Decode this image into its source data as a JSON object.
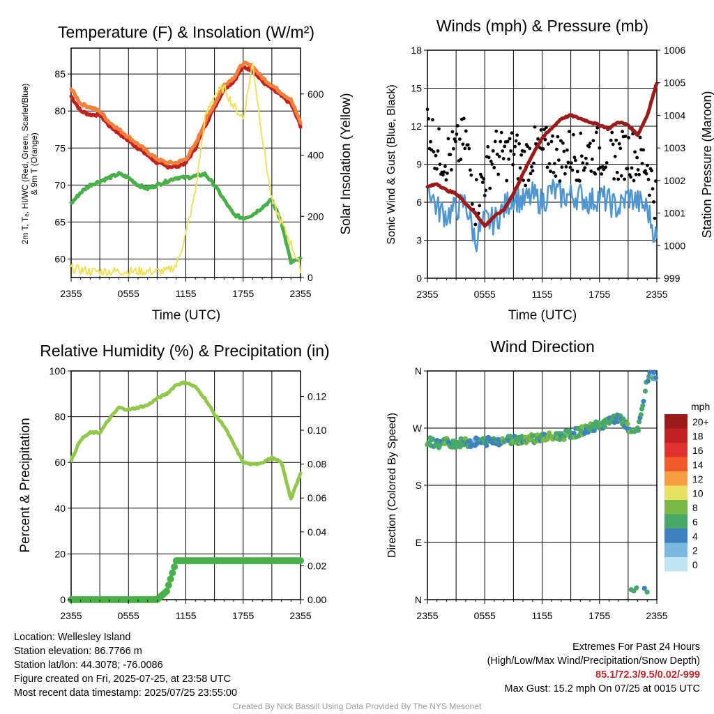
{
  "charts": {
    "temp": {
      "title": "Temperature (F) & Insolation (W/m²)",
      "ylabel_left_1": "2m T, Tₑ, HI/WC (Red, Green, Scarlet/Blue)",
      "ylabel_left_2": "& 9m T (Orange)",
      "ylabel_right": "Solar Insolation (Yellow)",
      "xlabel": "Time (UTC)"
    },
    "winds": {
      "title": "Winds (mph) & Pressure (mb)",
      "ylabel_left": "Sonic Wind & Gust (Blue, Black)",
      "ylabel_right": "Station Pressure (Maroon)",
      "xlabel": "Time (UTC)"
    },
    "rh": {
      "title": "Relative Humidity (%) & Precipitation (in)",
      "ylabel_left": "Percent & Precipitation"
    },
    "wdir": {
      "title": "Wind Direction",
      "ylabel_left": "Direction (Colored By Speed)",
      "legend_unit": "mph",
      "legend_labels": [
        "20+",
        "18",
        "16",
        "14",
        "12",
        "10",
        "8",
        "6",
        "4",
        "2",
        "0"
      ]
    }
  },
  "chart_data": [
    {
      "type": "line",
      "panel": "temp",
      "x_ticks": [
        "2355",
        "0555",
        "1155",
        "1755",
        "2355"
      ],
      "ylim": [
        57.5,
        88.5
      ],
      "y_ticks": [
        60,
        65,
        70,
        75,
        80,
        85
      ],
      "y2lim": [
        0,
        750
      ],
      "y2_ticks": [
        0,
        200,
        400,
        600
      ],
      "x_hours": [
        0,
        1,
        2,
        3,
        4,
        5,
        6,
        7,
        8,
        9,
        10,
        11,
        12,
        13,
        14,
        15,
        16,
        17,
        18,
        19,
        20,
        21,
        22,
        23,
        24
      ],
      "series": [
        {
          "color": "#c02020",
          "role": "2m temperature",
          "values": [
            82,
            80,
            79.5,
            79.5,
            78,
            77,
            76,
            75,
            74,
            73,
            72.5,
            72.5,
            73,
            75,
            78,
            80.5,
            83,
            84,
            86,
            85.5,
            84,
            83,
            82,
            81,
            78
          ]
        },
        {
          "color": "#f0803a",
          "role": "9m temperature",
          "values": [
            83,
            81,
            80.5,
            80,
            78.5,
            77.5,
            76.5,
            75.5,
            74.5,
            73.5,
            73,
            73,
            73.5,
            75.5,
            78.5,
            81,
            83.5,
            84.5,
            86.5,
            86,
            84.5,
            83.5,
            82.5,
            81.5,
            78.5
          ]
        },
        {
          "color": "#48b048",
          "role": "dewpoint",
          "values": [
            67.5,
            69,
            70,
            70.5,
            71,
            71.5,
            71,
            70,
            69.5,
            70,
            70.5,
            71,
            71,
            71.2,
            71.5,
            70,
            68,
            66,
            65.5,
            66,
            67,
            68,
            65,
            59.5,
            60
          ]
        },
        {
          "color": "#f0e060",
          "role": "insolation",
          "axis": "right",
          "values": [
            30,
            25,
            20,
            20,
            20,
            20,
            20,
            20,
            20,
            20,
            20,
            40,
            140,
            280,
            520,
            600,
            620,
            560,
            520,
            700,
            460,
            250,
            180,
            110,
            30
          ]
        }
      ]
    },
    {
      "type": "line",
      "panel": "winds",
      "x_ticks": [
        "2355",
        "0555",
        "1155",
        "1755",
        "2355"
      ],
      "ylim": [
        0,
        18
      ],
      "y_ticks": [
        0,
        3,
        6,
        9,
        12,
        15,
        18
      ],
      "y2lim": [
        999,
        1006
      ],
      "y2_ticks": [
        999,
        1000,
        1001,
        1002,
        1003,
        1004,
        1005,
        1006
      ],
      "x_hours": [
        0,
        1,
        2,
        3,
        4,
        5,
        6,
        7,
        8,
        9,
        10,
        11,
        12,
        13,
        14,
        15,
        16,
        17,
        18,
        19,
        20,
        21,
        22,
        23,
        24
      ],
      "series": [
        {
          "color": "#4f96d0",
          "role": "sonic wind",
          "values": [
            7.5,
            5.5,
            5,
            5.5,
            6,
            3,
            4.5,
            4.5,
            5.5,
            6.5,
            6,
            6.5,
            6,
            7,
            6.5,
            6.5,
            6.5,
            6,
            6.5,
            6,
            5.5,
            6.5,
            6,
            5.5,
            3
          ]
        },
        {
          "color": "#000000",
          "role": "gust",
          "values": [
            12.5,
            10,
            9.5,
            10,
            11,
            6,
            8,
            10,
            9.5,
            10,
            9,
            10,
            10,
            10,
            9.5,
            10,
            9.5,
            10,
            10,
            10,
            9.5,
            10,
            9.5,
            9,
            6
          ]
        },
        {
          "color": "#9b1a1a",
          "role": "station pressure",
          "axis": "right",
          "values": [
            1001.8,
            1001.9,
            1001.7,
            1001.6,
            1001.3,
            1001,
            1000.6,
            1000.9,
            1001.1,
            1001.6,
            1002.2,
            1002.8,
            1003.3,
            1003.6,
            1003.9,
            1004,
            1003.9,
            1003.8,
            1003.7,
            1003.6,
            1003.8,
            1003.7,
            1003.4,
            1004,
            1005
          ]
        }
      ]
    },
    {
      "type": "line",
      "panel": "rh",
      "x_ticks": [
        "2355",
        "0555",
        "1155",
        "1755",
        "2355"
      ],
      "ylim": [
        0,
        100
      ],
      "y_ticks": [
        0,
        20,
        40,
        60,
        80,
        100
      ],
      "y2lim": [
        0,
        0.135
      ],
      "y2_ticks": [
        "0.00",
        "0.02",
        "0.04",
        "0.06",
        "0.08",
        "0.10",
        "0.12"
      ],
      "x_hours": [
        0,
        1,
        2,
        3,
        4,
        5,
        6,
        7,
        8,
        9,
        10,
        11,
        12,
        13,
        14,
        15,
        16,
        17,
        18,
        19,
        20,
        21,
        22,
        23,
        24
      ],
      "series": [
        {
          "color": "#90c84a",
          "role": "relative humidity",
          "values": [
            61,
            70,
            73,
            73,
            79,
            84,
            83,
            84,
            85,
            88,
            90,
            94,
            95,
            93,
            88,
            81,
            76,
            68,
            60,
            59,
            60,
            62,
            60,
            44,
            55
          ]
        },
        {
          "color": "#48b048",
          "role": "precipitation",
          "axis": "right",
          "values": [
            0,
            0,
            0,
            0,
            0,
            0,
            0,
            0,
            0,
            0,
            0.005,
            0.023,
            0.023,
            0.023,
            0.023,
            0.023,
            0.023,
            0.023,
            0.023,
            0.023,
            0.023,
            0.023,
            0.023,
            0.023,
            0.023
          ]
        }
      ]
    },
    {
      "type": "scatter",
      "panel": "wdir",
      "x_ticks": [
        "2355",
        "0555",
        "1155",
        "1755",
        "2355"
      ],
      "y_ticks": [
        "N",
        "E",
        "S",
        "W",
        "N"
      ],
      "ylim": [
        0,
        360
      ],
      "color_scale": "mph",
      "x_hours": [
        0,
        1,
        2,
        3,
        4,
        5,
        6,
        7,
        8,
        9,
        10,
        11,
        12,
        13,
        14,
        15,
        16,
        17,
        18,
        19,
        20,
        21,
        22,
        23,
        24
      ],
      "direction_deg": [
        250,
        245,
        248,
        246,
        247,
        248,
        249,
        250,
        251,
        252,
        253,
        254,
        255,
        256,
        258,
        260,
        265,
        270,
        275,
        280,
        285,
        270,
        265,
        350,
        355
      ],
      "speed_mph": [
        7,
        5,
        6,
        6,
        6,
        4,
        5,
        5,
        6,
        6,
        6,
        7,
        6,
        7,
        6,
        6,
        6,
        6,
        6,
        6,
        5,
        6,
        6,
        5,
        3
      ]
    }
  ],
  "footer": {
    "location": "Location: Wellesley Island",
    "elevation": "Station elevation: 86.7766 m",
    "latlon": "Station lat/lon: 44.3078; -76.0086",
    "created": "Figure created on Fri, 2025-07-25, at 23:58 UTC",
    "recent": "Most recent data timestamp: 2025/07/25 23:55:00",
    "extremes_title": "Extremes For Past 24 Hours",
    "extremes_sub": "(High/Low/Max Wind/Precipitation/Snow Depth)",
    "extremes_values": "85.1/72.3/9.5/0.02/-999",
    "max_gust": "Max Gust: 15.2 mph On 07/25 at 0015 UTC",
    "credit": "Created By Nick Bassill Using Data Provided By The NYS Mesonet"
  },
  "colors": {
    "legend": [
      "#9b1a1a",
      "#c02020",
      "#e03030",
      "#f05a2a",
      "#f5a040",
      "#e8e060",
      "#7ab848",
      "#48a868",
      "#3c80c0",
      "#7ab8e0",
      "#c0e4f4"
    ]
  }
}
